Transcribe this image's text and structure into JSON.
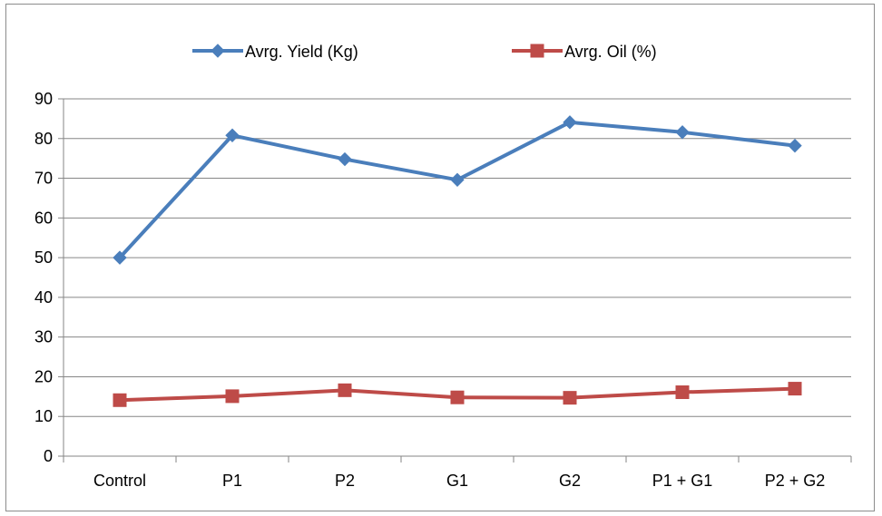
{
  "chart_data": {
    "type": "line",
    "categories": [
      "Control",
      "P1",
      "P2",
      "G1",
      "G2",
      "P1 + G1",
      "P2 + G2"
    ],
    "series": [
      {
        "name": "Avrg. Yield (Kg)",
        "color": "#4a7ebb",
        "marker": "diamond",
        "values": [
          50,
          80.8,
          74.8,
          69.6,
          84.1,
          81.6,
          78.2
        ]
      },
      {
        "name": "Avrg. Oil (%)",
        "color": "#be4b48",
        "marker": "square",
        "values": [
          14.1,
          15.1,
          16.6,
          14.8,
          14.7,
          16.1,
          17
        ]
      }
    ],
    "ylim": [
      0,
      90
    ],
    "yticks": [
      0,
      10,
      20,
      30,
      40,
      50,
      60,
      70,
      80,
      90
    ],
    "grid": true,
    "legend": "top"
  }
}
